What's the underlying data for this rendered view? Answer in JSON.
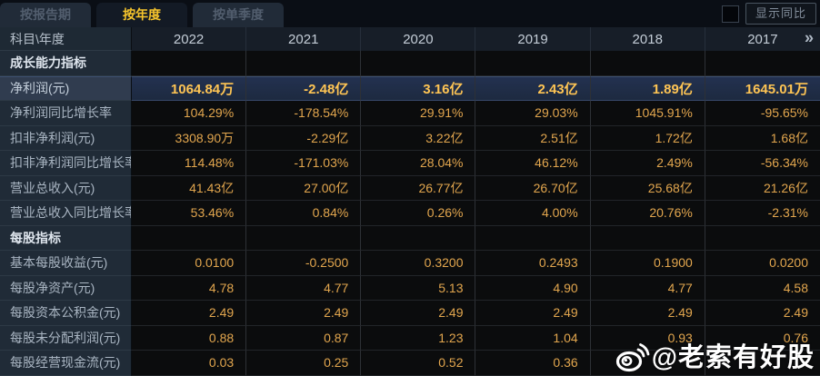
{
  "tabs": [
    {
      "name": "tab-by-report-period",
      "label": "按报告期",
      "active": false
    },
    {
      "name": "tab-by-year",
      "label": "按年度",
      "active": true
    },
    {
      "name": "tab-by-quarter",
      "label": "按单季度",
      "active": false
    }
  ],
  "controls": {
    "show_yoy_label": "显示同比",
    "checkbox_checked": false
  },
  "table": {
    "corner_label": "科目\\年度",
    "years": [
      "2022",
      "2021",
      "2020",
      "2019",
      "2018",
      "2017"
    ],
    "more_icon": "»",
    "rows": [
      {
        "type": "section",
        "label": "成长能力指标"
      },
      {
        "type": "data",
        "label": "净利润(元)",
        "highlight": true,
        "values": [
          "1064.84万",
          "-2.48亿",
          "3.16亿",
          "2.43亿",
          "1.89亿",
          "1645.01万"
        ]
      },
      {
        "type": "data",
        "label": "净利润同比增长率",
        "values": [
          "104.29%",
          "-178.54%",
          "29.91%",
          "29.03%",
          "1045.91%",
          "-95.65%"
        ]
      },
      {
        "type": "data",
        "label": "扣非净利润(元)",
        "values": [
          "3308.90万",
          "-2.29亿",
          "3.22亿",
          "2.51亿",
          "1.72亿",
          "1.68亿"
        ]
      },
      {
        "type": "data",
        "label": "扣非净利润同比增长率",
        "values": [
          "114.48%",
          "-171.03%",
          "28.04%",
          "46.12%",
          "2.49%",
          "-56.34%"
        ]
      },
      {
        "type": "data",
        "label": "营业总收入(元)",
        "values": [
          "41.43亿",
          "27.00亿",
          "26.77亿",
          "26.70亿",
          "25.68亿",
          "21.26亿"
        ]
      },
      {
        "type": "data",
        "label": "营业总收入同比增长率",
        "values": [
          "53.46%",
          "0.84%",
          "0.26%",
          "4.00%",
          "20.76%",
          "-2.31%"
        ]
      },
      {
        "type": "section",
        "label": "每股指标"
      },
      {
        "type": "data",
        "label": "基本每股收益(元)",
        "values": [
          "0.0100",
          "-0.2500",
          "0.3200",
          "0.2493",
          "0.1900",
          "0.0200"
        ]
      },
      {
        "type": "data",
        "label": "每股净资产(元)",
        "values": [
          "4.78",
          "4.77",
          "5.13",
          "4.90",
          "4.77",
          "4.58"
        ]
      },
      {
        "type": "data",
        "label": "每股资本公积金(元)",
        "values": [
          "2.49",
          "2.49",
          "2.49",
          "2.49",
          "2.49",
          "2.49"
        ]
      },
      {
        "type": "data",
        "label": "每股未分配利润(元)",
        "values": [
          "0.88",
          "0.87",
          "1.23",
          "1.04",
          "0.93",
          "0.76"
        ]
      },
      {
        "type": "data",
        "label": "每股经营现金流(元)",
        "values": [
          "0.03",
          "0.25",
          "0.52",
          "0.36",
          "",
          ""
        ]
      }
    ]
  },
  "watermark": {
    "icon": "weibo-logo-icon",
    "handle": "@老索有好股"
  },
  "colors": {
    "accent_gold": "#f7c52c",
    "value_gold": "#e2a64e",
    "highlight_value_gold": "#ffc554",
    "highlight_row_bg": "#1f2b41",
    "label_column_bg": "#202b37",
    "data_bg": "#0b0c0d"
  }
}
